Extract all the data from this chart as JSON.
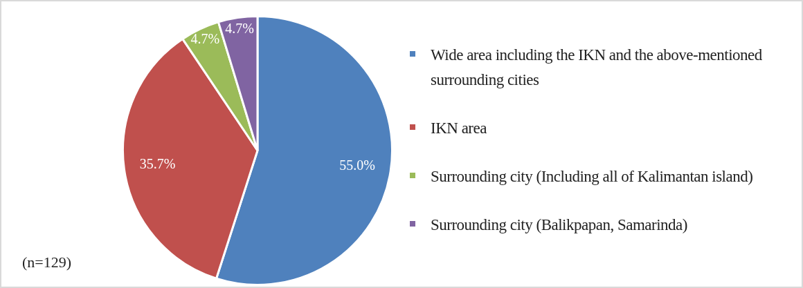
{
  "chart_data": {
    "type": "pie",
    "categories": [
      "Wide area including the IKN and the above-mentioned surrounding cities",
      "IKN area",
      "Surrounding city (Including all of Kalimantan island)",
      "Surrounding city (Balikpapan, Samarinda)"
    ],
    "values": [
      55.0,
      35.7,
      4.7,
      4.7
    ],
    "colors": [
      "#4f81bd",
      "#c0504d",
      "#9bbb59",
      "#8064a2"
    ],
    "value_labels": [
      "55.0%",
      "35.7%",
      "4.7%",
      "4.7%"
    ],
    "legend": "right",
    "annotations": [
      "(n=129)"
    ]
  }
}
